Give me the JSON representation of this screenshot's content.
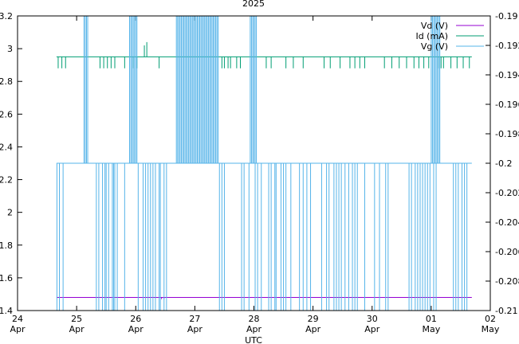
{
  "chart_data": {
    "type": "line",
    "title": "2025",
    "xlabel": "UTC",
    "ylabel": "",
    "y2label": "",
    "xlim": [
      "2025-04-24T00:00",
      "2025-05-02T00:00"
    ],
    "ylim": [
      1.4,
      3.2
    ],
    "y2lim": [
      -0.21,
      -0.19
    ],
    "x_ticks": [
      {
        "day": "24",
        "month": "Apr",
        "t": "2025-04-24T00:00"
      },
      {
        "day": "25",
        "month": "Apr",
        "t": "2025-04-25T00:00"
      },
      {
        "day": "26",
        "month": "Apr",
        "t": "2025-04-26T00:00"
      },
      {
        "day": "27",
        "month": "Apr",
        "t": "2025-04-27T00:00"
      },
      {
        "day": "28",
        "month": "Apr",
        "t": "2025-04-28T00:00"
      },
      {
        "day": "29",
        "month": "Apr",
        "t": "2025-04-29T00:00"
      },
      {
        "day": "30",
        "month": "Apr",
        "t": "2025-04-30T00:00"
      },
      {
        "day": "01",
        "month": "May",
        "t": "2025-05-01T00:00"
      },
      {
        "day": "02",
        "month": "May",
        "t": "2025-05-02T00:00"
      }
    ],
    "y_ticks": [
      "1.4",
      "1.6",
      "1.8",
      "2",
      "2.2",
      "2.4",
      "2.6",
      "2.8",
      "3",
      "3.2"
    ],
    "y2_ticks": [
      "-0.21",
      "-0.208",
      "-0.206",
      "-0.204",
      "-0.202",
      "-0.2",
      "-0.198",
      "-0.196",
      "-0.194",
      "-0.192",
      "-0.19"
    ],
    "legend_position": "top-right",
    "series": [
      {
        "name": "Vd (V)",
        "axis": "y",
        "color": "#9400d3",
        "baseline": 1.48,
        "t_start": "2025-04-24T15:50",
        "t_end": "2025-05-01T16:30",
        "dips": [
          {
            "t": "2025-04-26T08:00",
            "v": 1.47
          },
          {
            "t": "2025-04-26T10:30",
            "v": 1.47
          },
          {
            "t": "2025-04-26T11:30",
            "v": 1.47
          }
        ]
      },
      {
        "name": "Id (mA)",
        "axis": "y",
        "color": "#009e73",
        "baseline": 2.95,
        "t_start": "2025-04-24T15:50",
        "t_end": "2025-05-01T16:30",
        "dips": [
          {
            "t": "2025-04-24T16:30",
            "v": 2.88
          },
          {
            "t": "2025-04-24T18:00",
            "v": 2.88
          },
          {
            "t": "2025-04-24T19:30",
            "v": 2.88
          },
          {
            "t": "2025-04-25T09:30",
            "v": 2.88
          },
          {
            "t": "2025-04-25T11:00",
            "v": 2.88
          },
          {
            "t": "2025-04-25T12:30",
            "v": 2.88
          },
          {
            "t": "2025-04-25T14:00",
            "v": 2.88
          },
          {
            "t": "2025-04-25T15:30",
            "v": 2.88
          },
          {
            "t": "2025-04-25T19:30",
            "v": 2.88
          },
          {
            "t": "2025-04-25T23:00",
            "v": 2.88
          },
          {
            "t": "2025-04-26T00:30",
            "v": 2.88
          },
          {
            "t": "2025-04-26T03:30",
            "v": 3.02
          },
          {
            "t": "2025-04-26T04:30",
            "v": 3.04
          },
          {
            "t": "2025-04-26T09:30",
            "v": 2.88
          },
          {
            "t": "2025-04-27T11:00",
            "v": 2.88
          },
          {
            "t": "2025-04-27T12:00",
            "v": 2.88
          },
          {
            "t": "2025-04-27T13:30",
            "v": 2.88
          },
          {
            "t": "2025-04-27T14:30",
            "v": 2.88
          },
          {
            "t": "2025-04-27T17:00",
            "v": 2.88
          },
          {
            "t": "2025-04-27T18:30",
            "v": 2.88
          },
          {
            "t": "2025-04-28T05:00",
            "v": 2.88
          },
          {
            "t": "2025-04-28T07:00",
            "v": 2.88
          },
          {
            "t": "2025-04-28T13:00",
            "v": 2.88
          },
          {
            "t": "2025-04-28T16:00",
            "v": 2.88
          },
          {
            "t": "2025-04-28T20:00",
            "v": 2.88
          },
          {
            "t": "2025-04-29T04:30",
            "v": 2.88
          },
          {
            "t": "2025-04-29T07:00",
            "v": 2.88
          },
          {
            "t": "2025-04-29T11:00",
            "v": 2.88
          },
          {
            "t": "2025-04-29T15:00",
            "v": 2.88
          },
          {
            "t": "2025-04-29T17:00",
            "v": 2.88
          },
          {
            "t": "2025-04-29T19:00",
            "v": 2.88
          },
          {
            "t": "2025-04-29T21:00",
            "v": 2.88
          },
          {
            "t": "2025-04-30T05:00",
            "v": 2.88
          },
          {
            "t": "2025-04-30T08:00",
            "v": 2.88
          },
          {
            "t": "2025-04-30T11:00",
            "v": 2.88
          },
          {
            "t": "2025-04-30T14:00",
            "v": 2.88
          },
          {
            "t": "2025-04-30T17:00",
            "v": 2.88
          },
          {
            "t": "2025-04-30T19:00",
            "v": 2.88
          },
          {
            "t": "2025-04-30T21:00",
            "v": 2.88
          },
          {
            "t": "2025-04-30T23:00",
            "v": 2.88
          },
          {
            "t": "2025-05-01T03:00",
            "v": 2.88
          },
          {
            "t": "2025-05-01T04:00",
            "v": 2.88
          },
          {
            "t": "2025-05-01T05:00",
            "v": 2.88
          },
          {
            "t": "2025-05-01T08:00",
            "v": 2.88
          },
          {
            "t": "2025-05-01T10:30",
            "v": 2.88
          },
          {
            "t": "2025-05-01T13:00",
            "v": 2.88
          },
          {
            "t": "2025-05-01T15:30",
            "v": 2.88
          }
        ]
      },
      {
        "name": "Vg (V)",
        "axis": "y2",
        "color": "#56b4e9",
        "baseline": -0.2,
        "t_start": "2025-04-24T15:50",
        "t_end": "2025-05-01T16:30",
        "high": -0.19,
        "low": -0.21,
        "spikes_down": [
          "2025-04-24T16:00",
          "2025-04-24T17:00",
          "2025-04-24T18:30",
          "2025-04-25T08:00",
          "2025-04-25T09:00",
          "2025-04-25T10:30",
          "2025-04-25T11:30",
          "2025-04-25T12:00",
          "2025-04-25T13:00",
          "2025-04-25T14:30",
          "2025-04-25T15:00",
          "2025-04-25T15:30",
          "2025-04-25T16:30",
          "2025-04-25T19:30",
          "2025-04-26T01:00",
          "2025-04-26T03:00",
          "2025-04-26T04:00",
          "2025-04-26T05:00",
          "2025-04-26T06:00",
          "2025-04-26T07:00",
          "2025-04-26T08:00",
          "2025-04-26T09:30",
          "2025-04-26T10:00",
          "2025-04-26T11:30",
          "2025-04-26T12:30",
          "2025-04-27T10:00",
          "2025-04-27T11:00",
          "2025-04-27T12:00",
          "2025-04-27T19:00",
          "2025-04-27T20:00",
          "2025-04-27T22:00",
          "2025-04-28T00:30",
          "2025-04-28T01:30",
          "2025-04-28T03:00",
          "2025-04-28T06:00",
          "2025-04-28T07:00",
          "2025-04-28T08:30",
          "2025-04-28T09:00",
          "2025-04-28T11:00",
          "2025-04-28T12:00",
          "2025-04-28T13:00",
          "2025-04-28T15:00",
          "2025-04-28T18:30",
          "2025-04-28T20:00",
          "2025-04-28T21:30",
          "2025-04-28T23:00",
          "2025-04-29T03:30",
          "2025-04-29T05:30",
          "2025-04-29T06:30",
          "2025-04-29T08:30",
          "2025-04-29T09:30",
          "2025-04-29T10:30",
          "2025-04-29T11:30",
          "2025-04-29T13:00",
          "2025-04-29T14:30",
          "2025-04-29T16:00",
          "2025-04-29T17:00",
          "2025-04-29T18:00",
          "2025-04-29T21:00",
          "2025-04-30T01:00",
          "2025-04-30T03:00",
          "2025-04-30T05:30",
          "2025-04-30T06:30",
          "2025-04-30T15:00",
          "2025-04-30T16:00",
          "2025-04-30T17:30",
          "2025-04-30T18:30",
          "2025-04-30T19:30",
          "2025-04-30T20:30",
          "2025-04-30T21:30",
          "2025-04-30T22:30",
          "2025-04-30T23:30",
          "2025-05-01T01:00",
          "2025-05-01T02:00",
          "2025-05-01T09:00",
          "2025-05-01T10:00",
          "2025-05-01T11:00",
          "2025-05-01T12:30",
          "2025-05-01T13:30",
          "2025-05-01T14:30"
        ],
        "spikes_up": [
          "2025-04-25T03:00",
          "2025-04-25T03:30",
          "2025-04-25T04:00",
          "2025-04-25T04:30",
          "2025-04-25T21:30",
          "2025-04-25T22:00",
          "2025-04-25T22:30",
          "2025-04-25T23:00",
          "2025-04-25T23:30",
          "2025-04-26T00:00",
          "2025-04-26T00:30",
          "2025-04-26T16:30",
          "2025-04-26T17:00",
          "2025-04-26T17:30",
          "2025-04-26T18:00",
          "2025-04-26T18:30",
          "2025-04-26T19:00",
          "2025-04-26T19:30",
          "2025-04-26T20:00",
          "2025-04-26T20:30",
          "2025-04-26T21:00",
          "2025-04-26T21:30",
          "2025-04-26T22:00",
          "2025-04-26T22:30",
          "2025-04-26T23:00",
          "2025-04-26T23:30",
          "2025-04-27T00:00",
          "2025-04-27T00:30",
          "2025-04-27T01:00",
          "2025-04-27T01:30",
          "2025-04-27T02:00",
          "2025-04-27T02:30",
          "2025-04-27T03:00",
          "2025-04-27T03:30",
          "2025-04-27T04:00",
          "2025-04-27T04:30",
          "2025-04-27T05:00",
          "2025-04-27T05:30",
          "2025-04-27T06:00",
          "2025-04-27T06:30",
          "2025-04-27T07:00",
          "2025-04-27T07:30",
          "2025-04-27T08:00",
          "2025-04-27T08:30",
          "2025-04-27T09:00",
          "2025-04-27T09:30",
          "2025-04-27T22:30",
          "2025-04-27T23:00",
          "2025-04-27T23:30",
          "2025-04-28T00:00",
          "2025-04-28T00:30",
          "2025-04-28T01:00",
          "2025-05-01T00:00",
          "2025-05-01T00:30",
          "2025-05-01T01:00",
          "2025-05-01T01:30",
          "2025-05-01T02:00",
          "2025-05-01T02:30",
          "2025-05-01T03:00",
          "2025-05-01T03:30"
        ]
      }
    ]
  }
}
